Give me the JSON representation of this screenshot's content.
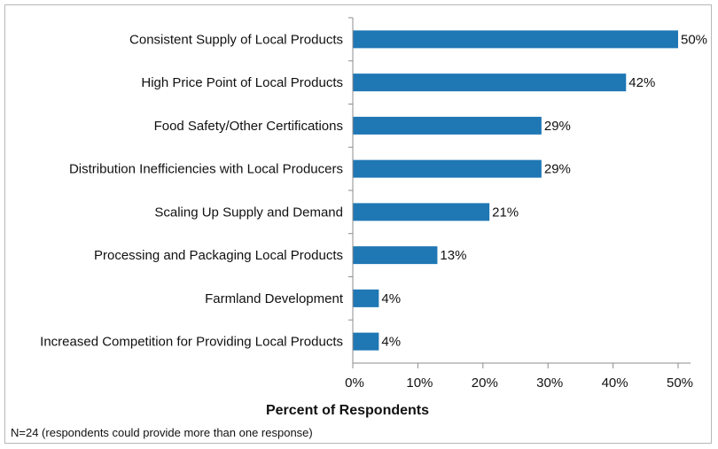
{
  "footnote": "N=24 (respondents could provide more than one response)",
  "colors": {
    "bar": "#1f77b4",
    "axis": "#8c8c8c",
    "border": "#b7b7b7"
  },
  "chart_data": {
    "type": "bar",
    "orientation": "horizontal",
    "title": "",
    "xlabel": "Percent of Respondents",
    "ylabel": "",
    "xlim": [
      0,
      50
    ],
    "ticks": [
      "0%",
      "10%",
      "20%",
      "30%",
      "40%",
      "50%"
    ],
    "tick_values": [
      0,
      10,
      20,
      30,
      40,
      50
    ],
    "grid": false,
    "categories": [
      "Consistent Supply of Local Products",
      "High Price Point of Local Products",
      "Food Safety/Other Certifications",
      "Distribution Inefficiencies with Local Producers",
      "Scaling Up Supply and Demand",
      "Processing and Packaging Local Products",
      "Farmland Development",
      "Increased Competition for Providing Local Products"
    ],
    "values": [
      50,
      42,
      29,
      29,
      21,
      13,
      4,
      4
    ],
    "data_labels": [
      "50%",
      "42%",
      "29%",
      "29%",
      "21%",
      "13%",
      "4%",
      "4%"
    ]
  }
}
